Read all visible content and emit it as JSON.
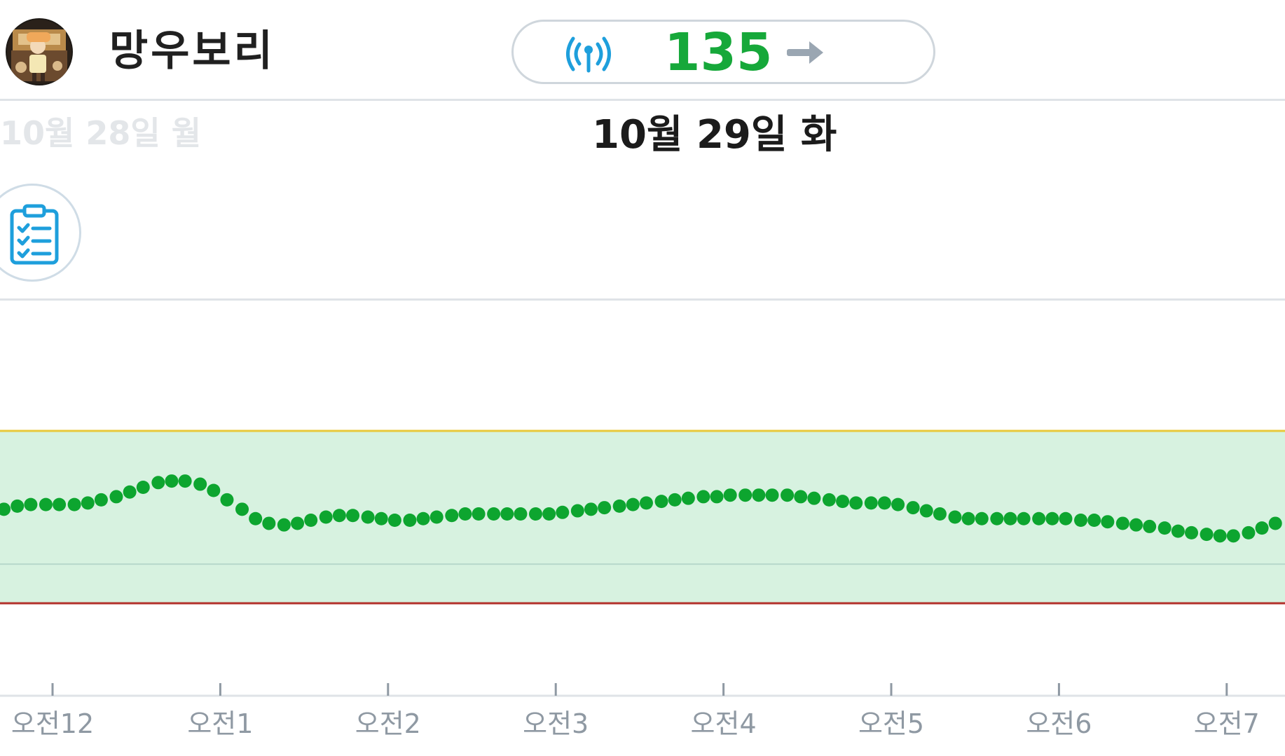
{
  "header": {
    "username": "망우보리",
    "glucose_value": "135",
    "trend": "steady",
    "signal_icon": "signal-icon",
    "avatar_icon": "avatar"
  },
  "dates": {
    "previous": "10월 28일 월",
    "current": "10월 29일 화"
  },
  "notes_button": {
    "icon": "clipboard-checklist-icon"
  },
  "colors": {
    "glucose_value": "#16a83a",
    "point": "#0da52f",
    "target_band": "#d7f2e0",
    "high_line": "#e8c83a",
    "low_line": "#b3312b",
    "icon_blue": "#1e9fdc",
    "arrow": "#9aa6b2"
  },
  "chart_data": {
    "type": "scatter",
    "title": "",
    "xlabel": "",
    "ylabel": "",
    "x_ticks": [
      "오전12",
      "오전1",
      "오전2",
      "오전3",
      "오전4",
      "오전5",
      "오전6",
      "오전7"
    ],
    "x_unit": "hours after midnight",
    "xlim": [
      -0.3,
      7.33
    ],
    "ylim": [
      40,
      260
    ],
    "target_range": [
      70,
      180
    ],
    "reference_line": 95,
    "series": [
      {
        "values": [
          [
            -0.29,
            130
          ],
          [
            -0.21,
            132
          ],
          [
            -0.13,
            133
          ],
          [
            -0.04,
            133
          ],
          [
            0.04,
            133
          ],
          [
            0.13,
            133
          ],
          [
            0.21,
            134
          ],
          [
            0.29,
            136
          ],
          [
            0.38,
            138
          ],
          [
            0.46,
            141
          ],
          [
            0.54,
            144
          ],
          [
            0.63,
            147
          ],
          [
            0.71,
            148
          ],
          [
            0.79,
            148
          ],
          [
            0.88,
            146
          ],
          [
            0.96,
            142
          ],
          [
            1.04,
            136
          ],
          [
            1.13,
            130
          ],
          [
            1.21,
            124
          ],
          [
            1.29,
            121
          ],
          [
            1.38,
            120
          ],
          [
            1.46,
            121
          ],
          [
            1.54,
            123
          ],
          [
            1.63,
            125
          ],
          [
            1.71,
            126
          ],
          [
            1.79,
            126
          ],
          [
            1.88,
            125
          ],
          [
            1.96,
            124
          ],
          [
            2.04,
            123
          ],
          [
            2.13,
            123
          ],
          [
            2.21,
            124
          ],
          [
            2.29,
            125
          ],
          [
            2.38,
            126
          ],
          [
            2.46,
            127
          ],
          [
            2.54,
            127
          ],
          [
            2.63,
            127
          ],
          [
            2.71,
            127
          ],
          [
            2.79,
            127
          ],
          [
            2.88,
            127
          ],
          [
            2.96,
            127
          ],
          [
            3.04,
            128
          ],
          [
            3.13,
            129
          ],
          [
            3.21,
            130
          ],
          [
            3.29,
            131
          ],
          [
            3.38,
            132
          ],
          [
            3.46,
            133
          ],
          [
            3.54,
            134
          ],
          [
            3.63,
            135
          ],
          [
            3.71,
            136
          ],
          [
            3.79,
            137
          ],
          [
            3.88,
            138
          ],
          [
            3.96,
            138
          ],
          [
            4.04,
            139
          ],
          [
            4.13,
            139
          ],
          [
            4.21,
            139
          ],
          [
            4.29,
            139
          ],
          [
            4.38,
            139
          ],
          [
            4.46,
            138
          ],
          [
            4.54,
            137
          ],
          [
            4.63,
            136
          ],
          [
            4.71,
            135
          ],
          [
            4.79,
            134
          ],
          [
            4.88,
            134
          ],
          [
            4.96,
            134
          ],
          [
            5.04,
            133
          ],
          [
            5.13,
            131
          ],
          [
            5.21,
            129
          ],
          [
            5.29,
            127
          ],
          [
            5.38,
            125
          ],
          [
            5.46,
            124
          ],
          [
            5.54,
            124
          ],
          [
            5.63,
            124
          ],
          [
            5.71,
            124
          ],
          [
            5.79,
            124
          ],
          [
            5.88,
            124
          ],
          [
            5.96,
            124
          ],
          [
            6.04,
            124
          ],
          [
            6.13,
            123
          ],
          [
            6.21,
            123
          ],
          [
            6.29,
            122
          ],
          [
            6.38,
            121
          ],
          [
            6.46,
            120
          ],
          [
            6.54,
            119
          ],
          [
            6.63,
            118
          ],
          [
            6.71,
            116
          ],
          [
            6.79,
            115
          ],
          [
            6.88,
            114
          ],
          [
            6.96,
            113
          ],
          [
            7.04,
            113
          ],
          [
            7.13,
            115
          ],
          [
            7.21,
            118
          ],
          [
            7.29,
            121
          ]
        ]
      }
    ]
  }
}
